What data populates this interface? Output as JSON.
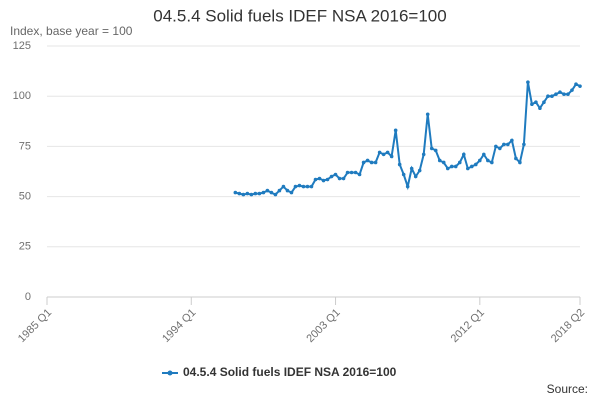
{
  "chart_data": {
    "type": "line",
    "title": "04.5.4 Solid fuels IDEF NSA 2016=100",
    "y_label": "Index, base year = 100",
    "source": "Source:",
    "x": [
      "1996 Q4",
      "1997 Q1",
      "1997 Q2",
      "1997 Q3",
      "1997 Q4",
      "1998 Q1",
      "1998 Q2",
      "1998 Q3",
      "1998 Q4",
      "1999 Q1",
      "1999 Q2",
      "1999 Q3",
      "1999 Q4",
      "2000 Q1",
      "2000 Q2",
      "2000 Q3",
      "2000 Q4",
      "2001 Q1",
      "2001 Q2",
      "2001 Q3",
      "2001 Q4",
      "2002 Q1",
      "2002 Q2",
      "2002 Q3",
      "2002 Q4",
      "2003 Q1",
      "2003 Q2",
      "2003 Q3",
      "2003 Q4",
      "2004 Q1",
      "2004 Q2",
      "2004 Q3",
      "2004 Q4",
      "2005 Q1",
      "2005 Q2",
      "2005 Q3",
      "2005 Q4",
      "2006 Q1",
      "2006 Q2",
      "2006 Q3",
      "2006 Q4",
      "2007 Q1",
      "2007 Q2",
      "2007 Q3",
      "2007 Q4",
      "2008 Q1",
      "2008 Q2",
      "2008 Q3",
      "2008 Q4",
      "2009 Q1",
      "2009 Q2",
      "2009 Q3",
      "2009 Q4",
      "2010 Q1",
      "2010 Q2",
      "2010 Q3",
      "2010 Q4",
      "2011 Q1",
      "2011 Q2",
      "2011 Q3",
      "2011 Q4",
      "2012 Q1",
      "2012 Q2",
      "2012 Q3",
      "2012 Q4",
      "2013 Q1",
      "2013 Q2",
      "2013 Q3",
      "2013 Q4",
      "2014 Q1",
      "2014 Q2",
      "2014 Q3",
      "2014 Q4",
      "2015 Q1",
      "2015 Q2",
      "2015 Q3",
      "2015 Q4",
      "2016 Q1",
      "2016 Q2",
      "2016 Q3",
      "2016 Q4",
      "2017 Q1",
      "2017 Q2",
      "2017 Q3",
      "2017 Q4",
      "2018 Q1",
      "2018 Q2"
    ],
    "series": [
      {
        "name": "04.5.4 Solid fuels IDEF NSA 2016=100",
        "color": "#1f7bbf",
        "values": [
          52,
          51.5,
          51,
          51.5,
          51,
          51.5,
          51.5,
          52,
          53,
          52,
          51,
          53,
          55,
          53,
          52,
          55,
          55.5,
          55,
          55,
          55,
          58.5,
          59,
          58,
          58.5,
          60,
          61,
          59,
          59,
          62,
          62,
          62,
          61,
          67,
          68,
          67,
          67,
          72,
          71,
          72,
          70,
          83,
          66,
          61,
          55,
          64,
          60,
          63,
          71,
          91,
          74,
          73,
          68,
          67,
          64,
          65,
          65,
          67,
          71,
          64,
          65,
          66,
          68,
          71,
          68,
          67,
          75,
          74,
          76,
          76,
          78,
          69,
          67,
          76,
          107,
          96,
          97,
          94,
          97,
          100,
          100,
          101,
          102,
          101,
          101,
          103,
          106,
          105
        ]
      }
    ],
    "xlim": [
      "1985 Q1",
      "2018 Q2"
    ],
    "xticks": [
      "1985 Q1",
      "1994 Q1",
      "2003 Q1",
      "2012 Q1",
      "2018 Q2"
    ],
    "ylim": [
      0,
      125
    ],
    "yticks": [
      0,
      25,
      50,
      75,
      100,
      125
    ],
    "grid": true,
    "legend": "bottom"
  }
}
